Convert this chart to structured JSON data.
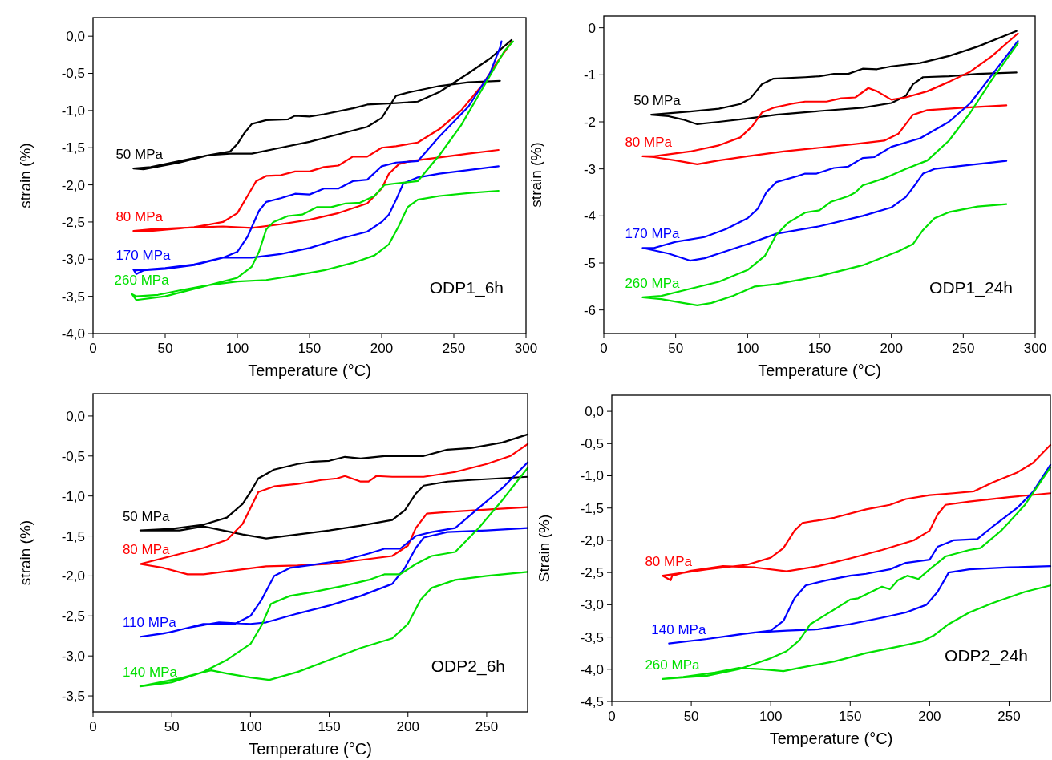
{
  "chart_data": [
    {
      "type": "line",
      "xlabel": "Temperature (°C)",
      "ylabel": "strain (%)",
      "annotations": [
        "ODP1_6h"
      ],
      "xlim": [
        0,
        300
      ],
      "xticks": [
        0,
        50,
        100,
        150,
        200,
        250,
        300
      ],
      "ylim": [
        -4,
        0.25
      ],
      "yticks": [
        {
          "value": -4,
          "label": "-4,0"
        },
        {
          "value": -3.5,
          "label": "-3,5"
        },
        {
          "value": -3,
          "label": "-3,0"
        },
        {
          "value": -2.5,
          "label": "-2,5"
        },
        {
          "value": -2,
          "label": "-2,0"
        },
        {
          "value": -1.5,
          "label": "-1,5"
        },
        {
          "value": -1,
          "label": "-1,0"
        },
        {
          "value": -0.5,
          "label": "-0,5"
        },
        {
          "value": 0,
          "label": "0,0"
        }
      ],
      "grid": false,
      "marker": "none",
      "line_style": "solid",
      "series": [
        {
          "name": "50 MPa",
          "color": "#000000",
          "x": [
            282,
            260,
            240,
            220,
            210,
            205,
            200,
            190,
            170,
            150,
            130,
            110,
            95,
            80,
            60,
            40,
            28,
            35,
            60,
            80,
            95,
            100,
            105,
            110,
            120,
            135,
            140,
            150,
            160,
            180,
            190,
            210,
            225,
            240,
            260,
            275,
            290
          ],
          "values": [
            -0.6,
            -0.62,
            -0.67,
            -0.75,
            -0.8,
            -0.95,
            -1.1,
            -1.22,
            -1.32,
            -1.42,
            -1.5,
            -1.58,
            -1.58,
            -1.6,
            -1.68,
            -1.76,
            -1.78,
            -1.79,
            -1.7,
            -1.6,
            -1.55,
            -1.45,
            -1.3,
            -1.18,
            -1.13,
            -1.12,
            -1.07,
            -1.08,
            -1.05,
            -0.97,
            -0.92,
            -0.9,
            -0.88,
            -0.75,
            -0.5,
            -0.3,
            -0.05
          ]
        },
        {
          "name": "80 MPa",
          "color": "#ff0000",
          "x": [
            281,
            260,
            240,
            220,
            212,
            205,
            200,
            190,
            170,
            150,
            130,
            110,
            90,
            60,
            40,
            28,
            40,
            70,
            90,
            100,
            107,
            113,
            120,
            130,
            140,
            150,
            160,
            170,
            180,
            190,
            200,
            210,
            225,
            240,
            255,
            270,
            280,
            290
          ],
          "values": [
            -1.53,
            -1.58,
            -1.63,
            -1.68,
            -1.72,
            -1.85,
            -2.05,
            -2.25,
            -2.38,
            -2.47,
            -2.53,
            -2.58,
            -2.56,
            -2.58,
            -2.6,
            -2.62,
            -2.62,
            -2.57,
            -2.5,
            -2.38,
            -2.15,
            -1.95,
            -1.88,
            -1.87,
            -1.82,
            -1.82,
            -1.76,
            -1.74,
            -1.62,
            -1.62,
            -1.5,
            -1.48,
            -1.43,
            -1.25,
            -1.0,
            -0.65,
            -0.35,
            -0.08
          ]
        },
        {
          "name": "170 MPa",
          "color": "#0000ff",
          "x": [
            281,
            260,
            240,
            225,
            215,
            210,
            205,
            200,
            190,
            170,
            150,
            130,
            110,
            90,
            70,
            50,
            35,
            30,
            28,
            30,
            50,
            70,
            90,
            100,
            107,
            115,
            120,
            130,
            140,
            150,
            160,
            170,
            180,
            190,
            200,
            210,
            225,
            240,
            260,
            275,
            282,
            283
          ],
          "values": [
            -1.75,
            -1.8,
            -1.85,
            -1.9,
            -1.98,
            -2.2,
            -2.4,
            -2.5,
            -2.63,
            -2.73,
            -2.85,
            -2.93,
            -2.98,
            -2.98,
            -3.08,
            -3.13,
            -3.15,
            -3.2,
            -3.14,
            -3.15,
            -3.12,
            -3.07,
            -2.98,
            -2.9,
            -2.7,
            -2.35,
            -2.23,
            -2.18,
            -2.12,
            -2.13,
            -2.05,
            -2.05,
            -1.95,
            -1.93,
            -1.75,
            -1.7,
            -1.68,
            -1.35,
            -0.95,
            -0.5,
            -0.15,
            -0.07
          ]
        },
        {
          "name": "260 MPa",
          "color": "#00e000",
          "x": [
            281,
            260,
            240,
            225,
            218,
            212,
            205,
            195,
            180,
            160,
            140,
            120,
            100,
            80,
            60,
            45,
            30,
            27,
            30,
            50,
            70,
            90,
            100,
            110,
            115,
            120,
            125,
            135,
            145,
            155,
            165,
            175,
            185,
            195,
            202,
            210,
            225,
            240,
            255,
            270,
            285,
            291
          ],
          "values": [
            -2.08,
            -2.11,
            -2.15,
            -2.2,
            -2.3,
            -2.55,
            -2.8,
            -2.95,
            -3.05,
            -3.15,
            -3.22,
            -3.28,
            -3.3,
            -3.35,
            -3.42,
            -3.48,
            -3.5,
            -3.47,
            -3.55,
            -3.5,
            -3.4,
            -3.3,
            -3.25,
            -3.1,
            -2.9,
            -2.6,
            -2.5,
            -2.42,
            -2.4,
            -2.3,
            -2.3,
            -2.25,
            -2.24,
            -2.15,
            -2.0,
            -1.98,
            -1.95,
            -1.6,
            -1.2,
            -0.7,
            -0.2,
            -0.07
          ]
        }
      ]
    },
    {
      "type": "line",
      "xlabel": "Temperature (°C)",
      "ylabel": "strain (%)",
      "annotations": [
        "ODP1_24h"
      ],
      "xlim": [
        0,
        300
      ],
      "xticks": [
        0,
        50,
        100,
        150,
        200,
        250,
        300
      ],
      "ylim": [
        -6.5,
        0.25
      ],
      "yticks": [
        -6,
        -5,
        -4,
        -3,
        -2,
        -1,
        0
      ],
      "grid": false,
      "marker": "none",
      "line_style": "solid",
      "series": [
        {
          "name": "50 MPa",
          "color": "#000000",
          "x": [
            287,
            260,
            240,
            222,
            215,
            210,
            200,
            180,
            150,
            120,
            100,
            80,
            65,
            55,
            45,
            33,
            60,
            80,
            95,
            102,
            110,
            118,
            140,
            150,
            160,
            170,
            180,
            190,
            200,
            220,
            240,
            260,
            287
          ],
          "values": [
            -0.95,
            -0.98,
            -1.03,
            -1.05,
            -1.2,
            -1.45,
            -1.6,
            -1.7,
            -1.77,
            -1.85,
            -1.93,
            -2.0,
            -2.05,
            -1.95,
            -1.88,
            -1.85,
            -1.78,
            -1.72,
            -1.62,
            -1.5,
            -1.2,
            -1.08,
            -1.05,
            -1.03,
            -0.98,
            -0.98,
            -0.87,
            -0.88,
            -0.82,
            -0.75,
            -0.6,
            -0.4,
            -0.07
          ]
        },
        {
          "name": "80 MPa",
          "color": "#ff0000",
          "x": [
            280,
            250,
            225,
            215,
            210,
            205,
            195,
            175,
            150,
            125,
            100,
            80,
            65,
            50,
            35,
            27,
            35,
            60,
            80,
            95,
            103,
            110,
            118,
            130,
            140,
            155,
            165,
            175,
            184,
            190,
            200,
            210,
            225,
            240,
            255,
            270,
            288
          ],
          "values": [
            -1.65,
            -1.7,
            -1.75,
            -1.85,
            -2.05,
            -2.25,
            -2.4,
            -2.47,
            -2.55,
            -2.63,
            -2.73,
            -2.82,
            -2.9,
            -2.82,
            -2.75,
            -2.73,
            -2.73,
            -2.63,
            -2.5,
            -2.33,
            -2.1,
            -1.8,
            -1.7,
            -1.62,
            -1.57,
            -1.57,
            -1.5,
            -1.48,
            -1.28,
            -1.35,
            -1.53,
            -1.48,
            -1.35,
            -1.15,
            -0.93,
            -0.6,
            -0.12
          ]
        },
        {
          "name": "170 MPa",
          "color": "#0000ff",
          "x": [
            280,
            250,
            230,
            222,
            215,
            210,
            200,
            180,
            150,
            120,
            100,
            80,
            70,
            60,
            45,
            27,
            35,
            50,
            70,
            85,
            100,
            107,
            113,
            120,
            135,
            140,
            148,
            160,
            170,
            180,
            188,
            200,
            220,
            240,
            255,
            270,
            288
          ],
          "values": [
            -2.83,
            -2.93,
            -3.0,
            -3.1,
            -3.4,
            -3.6,
            -3.82,
            -4.0,
            -4.22,
            -4.38,
            -4.6,
            -4.8,
            -4.9,
            -4.95,
            -4.8,
            -4.68,
            -4.68,
            -4.55,
            -4.45,
            -4.28,
            -4.05,
            -3.85,
            -3.5,
            -3.28,
            -3.15,
            -3.1,
            -3.1,
            -2.98,
            -2.95,
            -2.77,
            -2.75,
            -2.53,
            -2.35,
            -2.0,
            -1.6,
            -1.0,
            -0.28
          ]
        },
        {
          "name": "260 MPa",
          "color": "#00e000",
          "x": [
            280,
            260,
            240,
            230,
            222,
            215,
            205,
            180,
            150,
            120,
            105,
            90,
            75,
            65,
            55,
            40,
            27,
            40,
            60,
            80,
            100,
            112,
            120,
            128,
            140,
            150,
            158,
            170,
            175,
            180,
            195,
            210,
            225,
            240,
            255,
            270,
            288
          ],
          "values": [
            -3.75,
            -3.8,
            -3.92,
            -4.05,
            -4.3,
            -4.6,
            -4.75,
            -5.05,
            -5.28,
            -5.45,
            -5.5,
            -5.7,
            -5.85,
            -5.9,
            -5.85,
            -5.77,
            -5.73,
            -5.7,
            -5.55,
            -5.4,
            -5.15,
            -4.85,
            -4.4,
            -4.15,
            -3.93,
            -3.88,
            -3.7,
            -3.58,
            -3.5,
            -3.35,
            -3.2,
            -3.0,
            -2.82,
            -2.4,
            -1.8,
            -1.1,
            -0.33
          ]
        }
      ]
    },
    {
      "type": "line",
      "xlabel": "Temperature (°C)",
      "ylabel": "strain (%)",
      "annotations": [
        "ODP2_6h"
      ],
      "xlim": [
        0,
        276
      ],
      "xticks": [
        0,
        50,
        100,
        150,
        200,
        250
      ],
      "ylim": [
        -3.7,
        0.28
      ],
      "yticks": [
        {
          "value": -3.5,
          "label": "-3,5"
        },
        {
          "value": -3,
          "label": "-3,0"
        },
        {
          "value": -2.5,
          "label": "-2,5"
        },
        {
          "value": -2,
          "label": "-2,0"
        },
        {
          "value": -1.5,
          "label": "-1,5"
        },
        {
          "value": -1,
          "label": "-1,0"
        },
        {
          "value": -0.5,
          "label": "-0,5"
        },
        {
          "value": 0,
          "label": "0,0"
        }
      ],
      "grid": false,
      "marker": "none",
      "line_style": "solid",
      "series": [
        {
          "name": "50 MPa",
          "color": "#000000",
          "x": [
            276,
            240,
            225,
            210,
            205,
            198,
            190,
            170,
            150,
            130,
            110,
            95,
            80,
            70,
            55,
            30,
            50,
            70,
            85,
            95,
            100,
            105,
            115,
            130,
            140,
            150,
            160,
            170,
            185,
            210,
            225,
            240,
            260,
            276
          ],
          "values": [
            -0.76,
            -0.8,
            -0.82,
            -0.87,
            -0.97,
            -1.18,
            -1.3,
            -1.37,
            -1.43,
            -1.48,
            -1.53,
            -1.48,
            -1.42,
            -1.38,
            -1.43,
            -1.43,
            -1.41,
            -1.36,
            -1.27,
            -1.1,
            -0.95,
            -0.78,
            -0.67,
            -0.6,
            -0.57,
            -0.56,
            -0.51,
            -0.53,
            -0.5,
            -0.5,
            -0.42,
            -0.4,
            -0.33,
            -0.23
          ]
        },
        {
          "name": "80 MPa",
          "color": "#ff0000",
          "x": [
            276,
            250,
            225,
            212,
            205,
            200,
            190,
            170,
            150,
            130,
            110,
            90,
            70,
            60,
            45,
            30,
            50,
            70,
            85,
            95,
            100,
            105,
            115,
            130,
            145,
            155,
            160,
            170,
            175,
            180,
            190,
            210,
            230,
            250,
            265,
            276
          ],
          "values": [
            -1.14,
            -1.17,
            -1.2,
            -1.22,
            -1.4,
            -1.62,
            -1.75,
            -1.8,
            -1.85,
            -1.87,
            -1.88,
            -1.93,
            -1.98,
            -1.98,
            -1.9,
            -1.85,
            -1.75,
            -1.65,
            -1.55,
            -1.35,
            -1.15,
            -0.95,
            -0.88,
            -0.85,
            -0.8,
            -0.78,
            -0.75,
            -0.82,
            -0.82,
            -0.75,
            -0.76,
            -0.76,
            -0.7,
            -0.6,
            -0.5,
            -0.35
          ]
        },
        {
          "name": "110 MPa",
          "color": "#0000ff",
          "x": [
            276,
            250,
            225,
            210,
            205,
            198,
            190,
            170,
            150,
            130,
            110,
            100,
            80,
            60,
            45,
            30,
            50,
            70,
            90,
            100,
            107,
            115,
            125,
            140,
            160,
            175,
            185,
            195,
            205,
            215,
            230,
            245,
            260,
            276
          ],
          "values": [
            -1.4,
            -1.43,
            -1.45,
            -1.52,
            -1.65,
            -1.9,
            -2.1,
            -2.25,
            -2.37,
            -2.47,
            -2.58,
            -2.6,
            -2.58,
            -2.65,
            -2.72,
            -2.76,
            -2.7,
            -2.6,
            -2.6,
            -2.5,
            -2.3,
            -2.0,
            -1.9,
            -1.86,
            -1.8,
            -1.72,
            -1.66,
            -1.66,
            -1.5,
            -1.45,
            -1.4,
            -1.15,
            -0.9,
            -0.58
          ]
        },
        {
          "name": "140 MPa",
          "color": "#00e000",
          "x": [
            276,
            250,
            230,
            215,
            208,
            200,
            190,
            170,
            150,
            130,
            112,
            100,
            85,
            75,
            55,
            30,
            50,
            70,
            85,
            100,
            107,
            113,
            125,
            140,
            160,
            175,
            185,
            195,
            205,
            215,
            230,
            245,
            260,
            276
          ],
          "values": [
            -1.95,
            -2.0,
            -2.05,
            -2.15,
            -2.3,
            -2.6,
            -2.78,
            -2.9,
            -3.05,
            -3.2,
            -3.3,
            -3.27,
            -3.22,
            -3.18,
            -3.28,
            -3.38,
            -3.33,
            -3.2,
            -3.05,
            -2.85,
            -2.62,
            -2.35,
            -2.25,
            -2.2,
            -2.12,
            -2.05,
            -1.98,
            -1.98,
            -1.85,
            -1.75,
            -1.7,
            -1.4,
            -1.05,
            -0.65
          ]
        }
      ]
    },
    {
      "type": "line",
      "xlabel": "Temperature (°C)",
      "ylabel": "Strain (%)",
      "annotations": [
        "ODP2_24h"
      ],
      "xlim": [
        0,
        276
      ],
      "xticks": [
        0,
        50,
        100,
        150,
        200,
        250
      ],
      "ylim": [
        -4.5,
        0.25
      ],
      "yticks": [
        {
          "value": -4.5,
          "label": "-4,5"
        },
        {
          "value": -4,
          "label": "-4,0"
        },
        {
          "value": -3.5,
          "label": "-3,5"
        },
        {
          "value": -3,
          "label": "-3,0"
        },
        {
          "value": -2.5,
          "label": "-2,5"
        },
        {
          "value": -2,
          "label": "-2,0"
        },
        {
          "value": -1.5,
          "label": "-1,5"
        },
        {
          "value": -1,
          "label": "-1,0"
        },
        {
          "value": -0.5,
          "label": "-0,5"
        },
        {
          "value": 0,
          "label": "0,0"
        }
      ],
      "grid": false,
      "marker": "none",
      "line_style": "solid",
      "series": [
        {
          "name": "80 MPa",
          "color": "#ff0000",
          "x": [
            276,
            250,
            225,
            210,
            205,
            200,
            190,
            170,
            150,
            130,
            110,
            90,
            70,
            50,
            38,
            37,
            32,
            60,
            85,
            100,
            108,
            115,
            120,
            140,
            160,
            175,
            185,
            200,
            215,
            228,
            240,
            255,
            265,
            276
          ],
          "values": [
            -1.27,
            -1.33,
            -1.4,
            -1.45,
            -1.6,
            -1.85,
            -2.0,
            -2.15,
            -2.28,
            -2.4,
            -2.48,
            -2.42,
            -2.4,
            -2.47,
            -2.55,
            -2.62,
            -2.55,
            -2.45,
            -2.38,
            -2.27,
            -2.12,
            -1.85,
            -1.73,
            -1.65,
            -1.52,
            -1.45,
            -1.36,
            -1.3,
            -1.27,
            -1.24,
            -1.1,
            -0.95,
            -0.8,
            -0.52
          ]
        },
        {
          "name": "140 MPa",
          "color": "#0000ff",
          "x": [
            276,
            250,
            225,
            212,
            205,
            198,
            185,
            170,
            150,
            130,
            110,
            90,
            60,
            36,
            60,
            80,
            100,
            108,
            115,
            122,
            135,
            150,
            160,
            175,
            185,
            200,
            205,
            215,
            230,
            240,
            255,
            265,
            276
          ],
          "values": [
            -2.4,
            -2.42,
            -2.45,
            -2.5,
            -2.8,
            -3.0,
            -3.12,
            -3.2,
            -3.3,
            -3.38,
            -3.4,
            -3.43,
            -3.53,
            -3.6,
            -3.53,
            -3.46,
            -3.4,
            -3.25,
            -2.9,
            -2.7,
            -2.62,
            -2.55,
            -2.52,
            -2.45,
            -2.35,
            -2.3,
            -2.1,
            -2.0,
            -1.98,
            -1.78,
            -1.5,
            -1.25,
            -0.83
          ]
        },
        {
          "name": "260 MPa",
          "color": "#00e000",
          "x": [
            276,
            260,
            240,
            225,
            212,
            203,
            195,
            180,
            160,
            140,
            120,
            108,
            95,
            80,
            65,
            45,
            32,
            60,
            80,
            100,
            110,
            118,
            125,
            135,
            150,
            155,
            170,
            175,
            180,
            186,
            193,
            200,
            210,
            225,
            232,
            245,
            260,
            276
          ],
          "values": [
            -2.7,
            -2.8,
            -2.97,
            -3.12,
            -3.3,
            -3.47,
            -3.57,
            -3.65,
            -3.75,
            -3.88,
            -3.97,
            -4.03,
            -4.0,
            -3.98,
            -4.05,
            -4.12,
            -4.15,
            -4.1,
            -4.0,
            -3.83,
            -3.72,
            -3.55,
            -3.3,
            -3.15,
            -2.92,
            -2.9,
            -2.72,
            -2.76,
            -2.62,
            -2.55,
            -2.6,
            -2.45,
            -2.25,
            -2.15,
            -2.12,
            -1.85,
            -1.45,
            -0.87
          ]
        }
      ]
    }
  ]
}
